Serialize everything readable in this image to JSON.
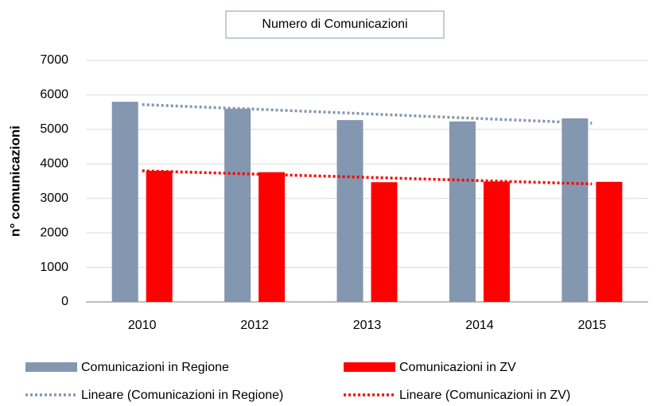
{
  "chart_data": {
    "type": "bar",
    "title": "Numero di Comunicazioni",
    "y_label": "n° comunicazioni",
    "categories": [
      "2010",
      "2012",
      "2013",
      "2014",
      "2015"
    ],
    "series": [
      {
        "name": "Comunicazioni in Regione",
        "color": "#8497b0",
        "values": [
          5800,
          5600,
          5270,
          5230,
          5320
        ]
      },
      {
        "name": "Comunicazioni in ZV",
        "color": "#ff0000",
        "values": [
          3800,
          3760,
          3470,
          3490,
          3480
        ]
      }
    ],
    "trendlines": [
      {
        "name": "Lineare (Comunicazioni in Regione)",
        "color": "#8497b0",
        "values": [
          5720,
          5585,
          5450,
          5315,
          5180
        ]
      },
      {
        "name": "Lineare (Comunicazioni in ZV)",
        "color": "#ff0000",
        "values": [
          3800,
          3705,
          3610,
          3515,
          3420
        ]
      }
    ],
    "ylim": [
      0,
      7000
    ],
    "yticks": [
      0,
      1000,
      2000,
      3000,
      4000,
      5000,
      6000,
      7000
    ],
    "grid": true
  }
}
